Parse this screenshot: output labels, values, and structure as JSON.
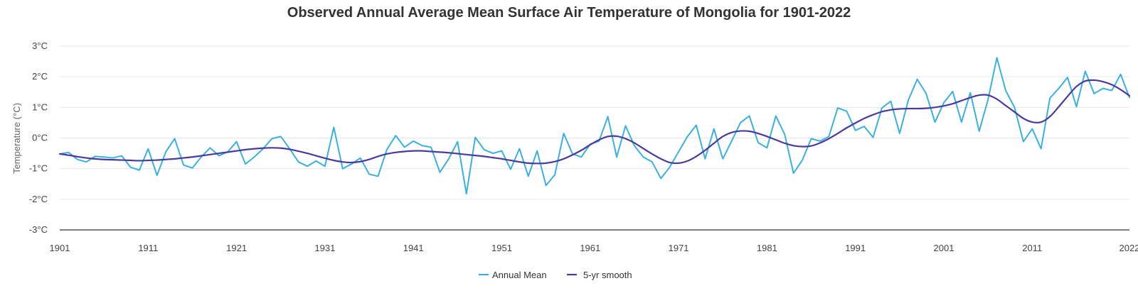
{
  "chart_data": {
    "type": "line",
    "title": "Observed Annual Average Mean Surface Air Temperature of Mongolia for 1901-2022",
    "xlabel": "",
    "ylabel": "Temperature (°C)",
    "xlim": [
      1901,
      2022
    ],
    "ylim": [
      -3,
      3
    ],
    "x_tick_labels": [
      "1901",
      "1911",
      "1921",
      "1931",
      "1941",
      "1951",
      "1961",
      "1971",
      "1981",
      "1991",
      "2001",
      "2011",
      "2022"
    ],
    "x_tick_values": [
      1901,
      1911,
      1921,
      1931,
      1941,
      1951,
      1961,
      1971,
      1981,
      1991,
      2001,
      2011,
      2022
    ],
    "y_tick_labels": [
      "3°C",
      "2°C",
      "1°C",
      "0°C",
      "-1°C",
      "-2°C",
      "-3°C"
    ],
    "y_tick_values": [
      3,
      2,
      1,
      0,
      -1,
      -2,
      -3
    ],
    "grid": true,
    "legend_position": "bottom",
    "x": [
      1901,
      1902,
      1903,
      1904,
      1905,
      1906,
      1907,
      1908,
      1909,
      1910,
      1911,
      1912,
      1913,
      1914,
      1915,
      1916,
      1917,
      1918,
      1919,
      1920,
      1921,
      1922,
      1923,
      1924,
      1925,
      1926,
      1927,
      1928,
      1929,
      1930,
      1931,
      1932,
      1933,
      1934,
      1935,
      1936,
      1937,
      1938,
      1939,
      1940,
      1941,
      1942,
      1943,
      1944,
      1945,
      1946,
      1947,
      1948,
      1949,
      1950,
      1951,
      1952,
      1953,
      1954,
      1955,
      1956,
      1957,
      1958,
      1959,
      1960,
      1961,
      1962,
      1963,
      1964,
      1965,
      1966,
      1967,
      1968,
      1969,
      1970,
      1971,
      1972,
      1973,
      1974,
      1975,
      1976,
      1977,
      1978,
      1979,
      1980,
      1981,
      1982,
      1983,
      1984,
      1985,
      1986,
      1987,
      1988,
      1989,
      1990,
      1991,
      1992,
      1993,
      1994,
      1995,
      1996,
      1997,
      1998,
      1999,
      2000,
      2001,
      2002,
      2003,
      2004,
      2005,
      2006,
      2007,
      2008,
      2009,
      2010,
      2011,
      2012,
      2013,
      2014,
      2015,
      2016,
      2017,
      2018,
      2019,
      2020,
      2021,
      2022
    ],
    "series": [
      {
        "name": "Annual Mean",
        "color": "#3ab0e2",
        "values": [
          -0.52,
          -0.47,
          -0.7,
          -0.78,
          -0.6,
          -0.62,
          -0.65,
          -0.58,
          -0.95,
          -1.05,
          -0.35,
          -1.22,
          -0.45,
          -0.02,
          -0.88,
          -0.98,
          -0.62,
          -0.32,
          -0.58,
          -0.45,
          -0.12,
          -0.85,
          -0.62,
          -0.35,
          -0.02,
          0.05,
          -0.35,
          -0.78,
          -0.92,
          -0.75,
          -0.92,
          0.35,
          -1.0,
          -0.85,
          -0.65,
          -1.18,
          -1.25,
          -0.38,
          0.08,
          -0.3,
          -0.1,
          -0.25,
          -0.3,
          -1.12,
          -0.68,
          -0.12,
          -1.82,
          0.02,
          -0.38,
          -0.5,
          -0.42,
          -1.02,
          -0.35,
          -1.25,
          -0.42,
          -1.55,
          -1.2,
          0.15,
          -0.52,
          -0.62,
          -0.2,
          -0.1,
          0.7,
          -0.62,
          0.4,
          -0.25,
          -0.62,
          -0.78,
          -1.32,
          -0.95,
          -0.45,
          0.05,
          0.42,
          -0.68,
          0.3,
          -0.68,
          -0.1,
          0.5,
          0.72,
          -0.15,
          -0.32,
          0.72,
          0.12,
          -1.15,
          -0.72,
          -0.02,
          -0.1,
          0.05,
          0.98,
          0.88,
          0.25,
          0.38,
          0.02,
          0.98,
          1.2,
          0.15,
          1.25,
          1.92,
          1.45,
          0.52,
          1.15,
          1.52,
          0.52,
          1.48,
          0.22,
          1.25,
          2.62,
          1.55,
          1.0,
          -0.12,
          0.3,
          -0.35,
          1.3,
          1.62,
          1.98,
          1.02,
          2.18,
          1.45,
          1.62,
          1.55,
          2.08,
          1.32
        ]
      },
      {
        "name": "5-yr smooth",
        "color": "#4b3a9e",
        "values": [
          -0.52,
          -0.56,
          -0.61,
          -0.65,
          -0.68,
          -0.7,
          -0.71,
          -0.72,
          -0.73,
          -0.74,
          -0.73,
          -0.72,
          -0.7,
          -0.68,
          -0.65,
          -0.62,
          -0.58,
          -0.54,
          -0.5,
          -0.46,
          -0.42,
          -0.38,
          -0.35,
          -0.33,
          -0.32,
          -0.33,
          -0.37,
          -0.43,
          -0.5,
          -0.58,
          -0.66,
          -0.73,
          -0.78,
          -0.8,
          -0.77,
          -0.7,
          -0.6,
          -0.52,
          -0.47,
          -0.44,
          -0.42,
          -0.42,
          -0.44,
          -0.46,
          -0.48,
          -0.51,
          -0.54,
          -0.57,
          -0.6,
          -0.64,
          -0.68,
          -0.73,
          -0.78,
          -0.82,
          -0.83,
          -0.82,
          -0.77,
          -0.68,
          -0.55,
          -0.4,
          -0.22,
          -0.06,
          0.05,
          0.06,
          -0.02,
          -0.16,
          -0.34,
          -0.52,
          -0.68,
          -0.8,
          -0.82,
          -0.75,
          -0.6,
          -0.4,
          -0.17,
          0.05,
          0.18,
          0.23,
          0.22,
          0.15,
          0.05,
          -0.06,
          -0.17,
          -0.25,
          -0.28,
          -0.26,
          -0.16,
          -0.02,
          0.15,
          0.33,
          0.49,
          0.64,
          0.76,
          0.86,
          0.92,
          0.95,
          0.96,
          0.96,
          0.97,
          1.0,
          1.05,
          1.12,
          1.22,
          1.32,
          1.4,
          1.4,
          1.27,
          1.06,
          0.85,
          0.64,
          0.52,
          0.52,
          0.7,
          1.02,
          1.36,
          1.68,
          1.86,
          1.89,
          1.84,
          1.74,
          1.58,
          1.38
        ]
      }
    ]
  }
}
